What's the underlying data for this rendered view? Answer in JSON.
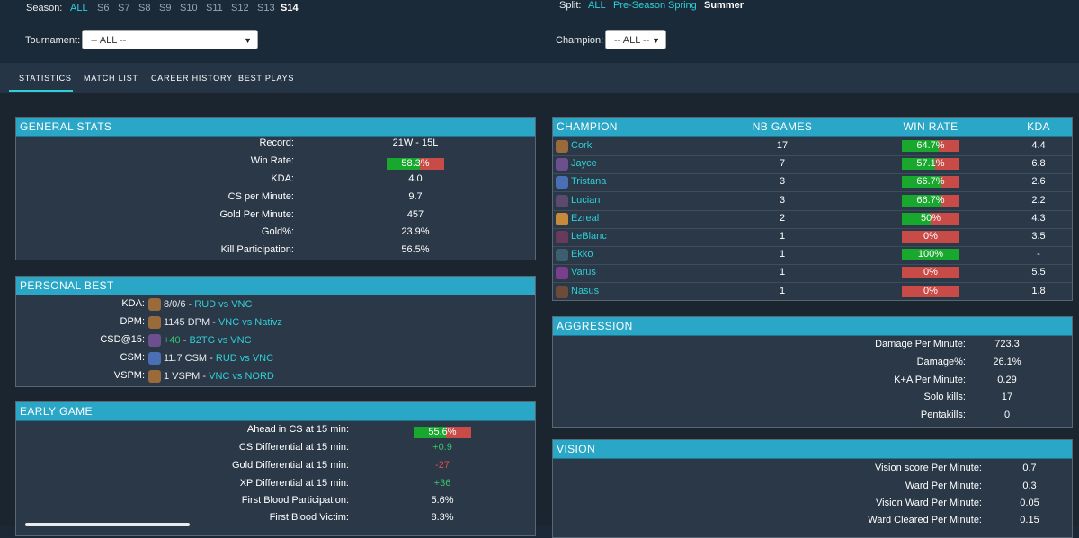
{
  "filters": {
    "season_label": "Season:",
    "seasons": [
      "ALL",
      "S6",
      "S7",
      "S8",
      "S9",
      "S10",
      "S11",
      "S12",
      "S13",
      "S14"
    ],
    "split_label": "Split:",
    "splits": [
      "ALL",
      "Pre-Season",
      "Spring",
      "Summer"
    ],
    "tournament_label": "Tournament:",
    "tournament_value": "-- ALL --",
    "champion_label": "Champion:",
    "champion_value": "-- ALL --"
  },
  "tabs": [
    "STATISTICS",
    "MATCH LIST",
    "CAREER HISTORY",
    "BEST PLAYS"
  ],
  "colors": {
    "accent": "#2fd0d8",
    "header": "#2aa6c7",
    "positive": "#18a82e",
    "negative": "#c94b48"
  },
  "general_stats": {
    "title": "GENERAL STATS",
    "rows": [
      {
        "label": "Record:",
        "value": "21W - 15L"
      },
      {
        "label": "Win Rate:",
        "value": "58.3%",
        "bar": 0.583
      },
      {
        "label": "KDA:",
        "value": "4.0"
      },
      {
        "label": "CS per Minute:",
        "value": "9.7"
      },
      {
        "label": "Gold Per Minute:",
        "value": "457"
      },
      {
        "label": "Gold%:",
        "value": "23.9%"
      },
      {
        "label": "Kill Participation:",
        "value": "56.5%"
      }
    ]
  },
  "personal_best": {
    "title": "PERSONAL BEST",
    "rows": [
      {
        "label": "KDA:",
        "value": "8/0/6",
        "match": "RUD vs VNC",
        "champion_icon": "corki-icon"
      },
      {
        "label": "DPM:",
        "value": "1145 DPM",
        "match": "VNC vs Nativz",
        "champion_icon": "corki-icon"
      },
      {
        "label": "CSD@15:",
        "value": "+40",
        "match": "B2TG vs VNC",
        "champion_icon": "jayce-icon"
      },
      {
        "label": "CSM:",
        "value": "11.7 CSM",
        "match": "RUD vs VNC",
        "champion_icon": "tristana-icon"
      },
      {
        "label": "VSPM:",
        "value": "1 VSPM",
        "match": "VNC vs NORD",
        "champion_icon": "corki-icon"
      }
    ]
  },
  "early_game": {
    "title": "EARLY GAME",
    "rows": [
      {
        "label": "Ahead in CS at 15 min:",
        "value": "55.6%",
        "bar": 0.556
      },
      {
        "label": "CS Differential at 15 min:",
        "value": "+0.9",
        "tone": "green"
      },
      {
        "label": "Gold Differential at 15 min:",
        "value": "-27",
        "tone": "red"
      },
      {
        "label": "XP Differential at 15 min:",
        "value": "+36",
        "tone": "green"
      },
      {
        "label": "First Blood Participation:",
        "value": "5.6%"
      },
      {
        "label": "First Blood Victim:",
        "value": "8.3%"
      }
    ]
  },
  "champions": {
    "headers": [
      "CHAMPION",
      "NB GAMES",
      "WIN RATE",
      "KDA"
    ],
    "rows": [
      {
        "name": "Corki",
        "games": "17",
        "winrate": "64.7%",
        "wr": 0.647,
        "kda": "4.4",
        "icon_color": "#9a6a3a"
      },
      {
        "name": "Jayce",
        "games": "7",
        "winrate": "57.1%",
        "wr": 0.571,
        "kda": "6.8",
        "icon_color": "#6c4f8e"
      },
      {
        "name": "Tristana",
        "games": "3",
        "winrate": "66.7%",
        "wr": 0.667,
        "kda": "2.6",
        "icon_color": "#4a6fb5"
      },
      {
        "name": "Lucian",
        "games": "3",
        "winrate": "66.7%",
        "wr": 0.667,
        "kda": "2.2",
        "icon_color": "#5a4a6e"
      },
      {
        "name": "Ezreal",
        "games": "2",
        "winrate": "50%",
        "wr": 0.5,
        "kda": "4.3",
        "icon_color": "#c58a3c"
      },
      {
        "name": "LeBlanc",
        "games": "1",
        "winrate": "0%",
        "wr": 0,
        "kda": "3.5",
        "icon_color": "#6a3a5e"
      },
      {
        "name": "Ekko",
        "games": "1",
        "winrate": "100%",
        "wr": 1,
        "kda": "-",
        "icon_color": "#3c5e6e"
      },
      {
        "name": "Varus",
        "games": "1",
        "winrate": "0%",
        "wr": 0,
        "kda": "5.5",
        "icon_color": "#7a3e8e"
      },
      {
        "name": "Nasus",
        "games": "1",
        "winrate": "0%",
        "wr": 0,
        "kda": "1.8",
        "icon_color": "#6e4a3a"
      }
    ]
  },
  "aggression": {
    "title": "AGGRESSION",
    "rows": [
      {
        "label": "Damage Per Minute:",
        "value": "723.3"
      },
      {
        "label": "Damage%:",
        "value": "26.1%"
      },
      {
        "label": "K+A Per Minute:",
        "value": "0.29"
      },
      {
        "label": "Solo kills:",
        "value": "17"
      },
      {
        "label": "Pentakills:",
        "value": "0"
      }
    ]
  },
  "vision": {
    "title": "VISION",
    "rows": [
      {
        "label": "Vision score Per Minute:",
        "value": "0.7"
      },
      {
        "label": "Ward Per Minute:",
        "value": "0.3"
      },
      {
        "label": "Vision Ward Per Minute:",
        "value": "0.05"
      },
      {
        "label": "Ward Cleared Per Minute:",
        "value": "0.15"
      }
    ]
  }
}
